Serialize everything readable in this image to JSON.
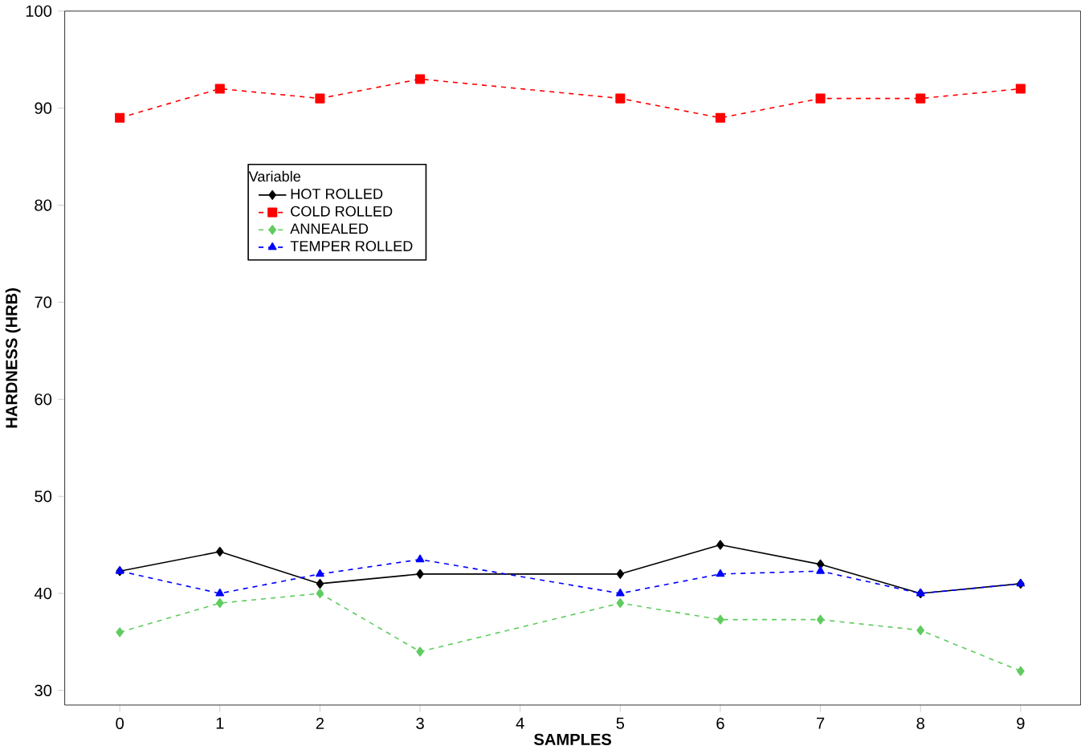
{
  "chart_data": {
    "type": "line",
    "xlabel": "SAMPLES",
    "ylabel": "HARDNESS (HRB)",
    "legend_title": "Variable",
    "legend": "left",
    "grid": false,
    "x": [
      0,
      1,
      2,
      3,
      5,
      6,
      7,
      8,
      9
    ],
    "xlim": [
      -0.55,
      9.6
    ],
    "xticks": [
      0,
      1,
      2,
      3,
      4,
      5,
      6,
      7,
      8,
      9
    ],
    "ylim": [
      28.5,
      100
    ],
    "yticks": [
      30,
      40,
      50,
      60,
      70,
      80,
      90,
      100
    ],
    "series": [
      {
        "name": "HOT ROLLED",
        "color": "#000000",
        "marker": "diamond",
        "line_style": "solid",
        "values": [
          42.3,
          44.3,
          41,
          42,
          42,
          45,
          43,
          40,
          41
        ]
      },
      {
        "name": "COLD ROLLED",
        "color": "#ff0000",
        "marker": "square",
        "line_style": "dashed",
        "values": [
          89,
          92,
          91,
          93,
          91,
          89,
          91,
          91,
          92
        ]
      },
      {
        "name": "ANNEALED",
        "color": "#5fcc5f",
        "marker": "diamond",
        "line_style": "dashed",
        "values": [
          36,
          39,
          40,
          34,
          39,
          37.3,
          37.3,
          36.2,
          32
        ]
      },
      {
        "name": "TEMPER ROLLED",
        "color": "#0000ff",
        "marker": "triangle",
        "line_style": "dashed",
        "values": [
          42.3,
          40,
          42,
          43.5,
          40,
          42,
          42.3,
          40,
          41
        ]
      }
    ]
  }
}
